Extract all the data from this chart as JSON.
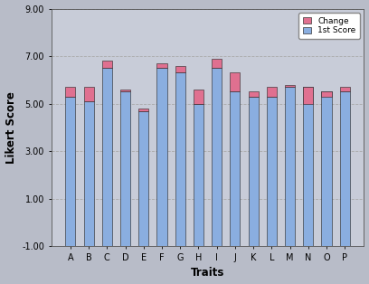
{
  "categories": [
    "A",
    "B",
    "C",
    "D",
    "E",
    "F",
    "G",
    "H",
    "I",
    "J",
    "K",
    "L",
    "M",
    "N",
    "O",
    "P"
  ],
  "first_score": [
    5.3,
    5.1,
    6.5,
    5.5,
    4.7,
    6.5,
    6.3,
    5.0,
    6.5,
    5.5,
    5.3,
    5.3,
    5.7,
    5.7,
    5.5,
    5.5
  ],
  "change": [
    0.4,
    0.6,
    0.3,
    0.1,
    0.1,
    0.2,
    0.3,
    0.6,
    0.4,
    0.8,
    0.2,
    0.4,
    0.1,
    -0.7,
    -0.2,
    0.2
  ],
  "bar_color_first": "#8aaee0",
  "bar_color_change": "#e07090",
  "bar_edge_color": "#222222",
  "background_color": "#b8bcc8",
  "plot_bg_color": "#c8ccd8",
  "ylabel": "Likert Score",
  "xlabel": "Traits",
  "ylim_min": -1.0,
  "ylim_max": 9.0,
  "yticks": [
    -1.0,
    1.0,
    3.0,
    5.0,
    7.0,
    9.0
  ],
  "ytick_labels": [
    "-1.00",
    "1.00",
    "3.00",
    "5.00",
    "7.00",
    "9.00"
  ],
  "legend_change": "Change",
  "legend_first": "1st Score",
  "bar_width": 0.55,
  "bar_bottom": -1.0
}
